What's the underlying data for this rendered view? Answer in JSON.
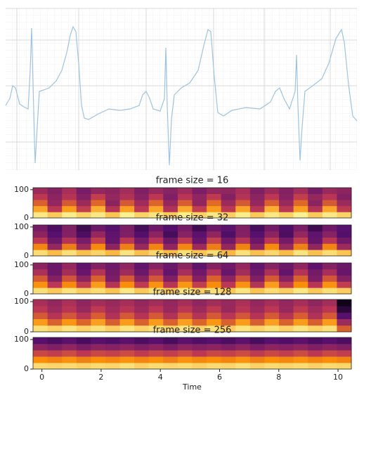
{
  "chart_data": [
    {
      "type": "line",
      "color": "#9ec3e0",
      "x": [
        0,
        6,
        10,
        14,
        20,
        26,
        32,
        35,
        37,
        39,
        42,
        45,
        48,
        54,
        62,
        72,
        80,
        87,
        92,
        96,
        100,
        104,
        108,
        112,
        118,
        132,
        147,
        162,
        177,
        190,
        195,
        200,
        205,
        210,
        220,
        226,
        228,
        230,
        233,
        236,
        240,
        250,
        262,
        274,
        282,
        288,
        292,
        297,
        302,
        310,
        322,
        342,
        362,
        377,
        384,
        390,
        396,
        404,
        412,
        414,
        416,
        419,
        422,
        426,
        437,
        450,
        460,
        470,
        478,
        482,
        488,
        494,
        500
      ],
      "values": [
        92,
        102,
        120,
        117,
        94,
        90,
        87,
        142,
        202,
        122,
        10,
        62,
        112,
        114,
        117,
        127,
        142,
        167,
        192,
        204,
        197,
        152,
        92,
        74,
        72,
        80,
        87,
        85,
        87,
        92,
        107,
        112,
        102,
        87,
        84,
        102,
        174,
        92,
        7,
        72,
        107,
        117,
        124,
        142,
        177,
        200,
        197,
        132,
        82,
        77,
        85,
        89,
        87,
        97,
        112,
        117,
        102,
        87,
        112,
        164,
        92,
        14,
        62,
        112,
        120,
        130,
        152,
        187,
        200,
        182,
        122,
        77,
        70
      ],
      "xlim": [
        0,
        500
      ],
      "ylim": [
        0,
        230
      ]
    },
    {
      "type": "heatmap",
      "title": "frame size = 16",
      "colormap": "inferno",
      "xlim": [
        -0.3,
        10.45
      ],
      "ylim": [
        0,
        107
      ],
      "yticks": [
        0,
        100
      ],
      "values": [
        [
          0.95,
          0.88,
          0.96,
          0.9,
          0.95,
          0.87,
          0.97,
          0.9,
          0.94,
          0.88,
          0.96,
          0.9,
          0.95,
          0.89,
          0.96,
          0.88,
          0.95,
          0.9,
          0.97,
          0.88,
          0.95,
          0.9
        ],
        [
          0.8,
          0.5,
          0.78,
          0.52,
          0.82,
          0.48,
          0.79,
          0.5,
          0.8,
          0.47,
          0.81,
          0.52,
          0.78,
          0.5,
          0.8,
          0.49,
          0.82,
          0.5,
          0.79,
          0.48,
          0.8,
          0.51
        ],
        [
          0.62,
          0.4,
          0.6,
          0.42,
          0.64,
          0.38,
          0.6,
          0.43,
          0.63,
          0.4,
          0.61,
          0.39,
          0.65,
          0.42,
          0.6,
          0.4,
          0.62,
          0.41,
          0.64,
          0.38,
          0.6,
          0.42
        ],
        [
          0.5,
          0.38,
          0.48,
          0.36,
          0.52,
          0.4,
          0.47,
          0.37,
          0.5,
          0.35,
          0.49,
          0.39,
          0.51,
          0.36,
          0.48,
          0.38,
          0.5,
          0.37,
          0.52,
          0.4,
          0.49,
          0.36
        ],
        [
          0.42,
          0.36,
          0.45,
          0.33,
          0.4,
          0.38,
          0.44,
          0.35,
          0.41,
          0.37,
          0.43,
          0.34,
          0.4,
          0.39,
          0.45,
          0.35,
          0.42,
          0.36,
          0.44,
          0.33,
          0.41,
          0.38
        ]
      ]
    },
    {
      "type": "heatmap",
      "title": "frame size = 32",
      "colormap": "inferno",
      "xlim": [
        -0.3,
        10.45
      ],
      "ylim": [
        0,
        107
      ],
      "yticks": [
        0,
        100
      ],
      "values": [
        [
          0.92,
          0.85,
          0.93,
          0.86,
          0.9,
          0.84,
          0.94,
          0.86,
          0.91,
          0.85,
          0.93,
          0.87,
          0.92,
          0.84,
          0.93,
          0.86,
          0.91,
          0.85,
          0.94,
          0.86,
          0.92,
          0.87
        ],
        [
          0.72,
          0.4,
          0.7,
          0.42,
          0.74,
          0.38,
          0.71,
          0.41,
          0.72,
          0.39,
          0.73,
          0.42,
          0.7,
          0.4,
          0.72,
          0.38,
          0.74,
          0.41,
          0.71,
          0.39,
          0.72,
          0.42
        ],
        [
          0.5,
          0.3,
          0.48,
          0.33,
          0.52,
          0.28,
          0.5,
          0.32,
          0.49,
          0.3,
          0.51,
          0.29,
          0.53,
          0.31,
          0.48,
          0.3,
          0.5,
          0.32,
          0.52,
          0.28,
          0.49,
          0.31
        ],
        [
          0.38,
          0.25,
          0.36,
          0.22,
          0.4,
          0.27,
          0.35,
          0.24,
          0.38,
          0.2,
          0.37,
          0.26,
          0.39,
          0.23,
          0.36,
          0.25,
          0.38,
          0.22,
          0.4,
          0.27,
          0.37,
          0.24
        ],
        [
          0.33,
          0.22,
          0.35,
          0.18,
          0.3,
          0.25,
          0.34,
          0.2,
          0.31,
          0.24,
          0.33,
          0.19,
          0.3,
          0.26,
          0.35,
          0.21,
          0.32,
          0.23,
          0.34,
          0.18,
          0.31,
          0.25
        ]
      ]
    },
    {
      "type": "heatmap",
      "title": "frame size = 64",
      "colormap": "inferno",
      "xlim": [
        -0.3,
        10.45
      ],
      "ylim": [
        0,
        107
      ],
      "yticks": [
        0,
        100
      ],
      "values": [
        [
          0.93,
          0.88,
          0.94,
          0.89,
          0.92,
          0.87,
          0.95,
          0.88,
          0.93,
          0.87,
          0.94,
          0.89,
          0.93,
          0.88,
          0.94,
          0.87,
          0.92,
          0.89,
          0.95,
          0.88,
          0.93,
          0.89
        ],
        [
          0.76,
          0.5,
          0.74,
          0.52,
          0.78,
          0.48,
          0.75,
          0.51,
          0.76,
          0.49,
          0.77,
          0.52,
          0.74,
          0.5,
          0.76,
          0.48,
          0.78,
          0.51,
          0.75,
          0.49,
          0.76,
          0.52
        ],
        [
          0.6,
          0.36,
          0.58,
          0.38,
          0.62,
          0.34,
          0.6,
          0.37,
          0.59,
          0.35,
          0.61,
          0.36,
          0.62,
          0.38,
          0.58,
          0.35,
          0.6,
          0.37,
          0.62,
          0.34,
          0.59,
          0.36
        ],
        [
          0.46,
          0.3,
          0.44,
          0.29,
          0.48,
          0.32,
          0.43,
          0.3,
          0.46,
          0.28,
          0.45,
          0.31,
          0.47,
          0.29,
          0.44,
          0.3,
          0.46,
          0.28,
          0.48,
          0.32,
          0.45,
          0.29
        ],
        [
          0.38,
          0.3,
          0.4,
          0.27,
          0.36,
          0.31,
          0.39,
          0.28,
          0.37,
          0.3,
          0.38,
          0.27,
          0.36,
          0.31,
          0.4,
          0.28,
          0.37,
          0.3,
          0.39,
          0.27,
          0.36,
          0.3
        ]
      ]
    },
    {
      "type": "heatmap",
      "title": "frame size = 128",
      "colormap": "inferno",
      "xlim": [
        -0.3,
        10.45
      ],
      "ylim": [
        0,
        107
      ],
      "yticks": [
        0,
        100
      ],
      "values": [
        [
          0.93,
          0.9,
          0.94,
          0.9,
          0.93,
          0.89,
          0.94,
          0.9,
          0.93,
          0.9,
          0.94,
          0.9,
          0.93,
          0.89,
          0.94,
          0.9,
          0.93,
          0.9,
          0.94,
          0.9,
          0.93,
          0.62
        ],
        [
          0.78,
          0.62,
          0.77,
          0.63,
          0.79,
          0.61,
          0.78,
          0.62,
          0.78,
          0.62,
          0.79,
          0.63,
          0.77,
          0.62,
          0.78,
          0.61,
          0.79,
          0.62,
          0.78,
          0.61,
          0.78,
          0.42
        ],
        [
          0.6,
          0.48,
          0.59,
          0.49,
          0.61,
          0.47,
          0.6,
          0.48,
          0.6,
          0.47,
          0.61,
          0.48,
          0.6,
          0.49,
          0.59,
          0.48,
          0.6,
          0.48,
          0.61,
          0.47,
          0.6,
          0.25
        ],
        [
          0.5,
          0.42,
          0.49,
          0.41,
          0.51,
          0.43,
          0.49,
          0.42,
          0.5,
          0.41,
          0.5,
          0.42,
          0.51,
          0.41,
          0.49,
          0.42,
          0.5,
          0.41,
          0.51,
          0.43,
          0.5,
          0.12
        ],
        [
          0.45,
          0.4,
          0.46,
          0.39,
          0.44,
          0.41,
          0.45,
          0.4,
          0.44,
          0.4,
          0.45,
          0.39,
          0.44,
          0.41,
          0.46,
          0.4,
          0.45,
          0.4,
          0.45,
          0.39,
          0.44,
          0.05
        ]
      ]
    },
    {
      "type": "heatmap",
      "title": "frame size = 256",
      "colormap": "inferno",
      "xlim": [
        -0.3,
        10.45
      ],
      "ylim": [
        0,
        107
      ],
      "yticks": [
        0,
        100
      ],
      "xticks": [
        0,
        2,
        4,
        6,
        8,
        10
      ],
      "xlabel": "Time",
      "values": [
        [
          0.92,
          0.91,
          0.92,
          0.9,
          0.92,
          0.91,
          0.93,
          0.9,
          0.92,
          0.91,
          0.92,
          0.9,
          0.92,
          0.91,
          0.93,
          0.9,
          0.92,
          0.91,
          0.92,
          0.9,
          0.92,
          0.91
        ],
        [
          0.75,
          0.72,
          0.76,
          0.71,
          0.75,
          0.73,
          0.76,
          0.72,
          0.75,
          0.71,
          0.76,
          0.73,
          0.75,
          0.72,
          0.76,
          0.71,
          0.75,
          0.73,
          0.76,
          0.72,
          0.75,
          0.72
        ],
        [
          0.55,
          0.52,
          0.56,
          0.5,
          0.55,
          0.53,
          0.56,
          0.51,
          0.55,
          0.52,
          0.56,
          0.5,
          0.55,
          0.53,
          0.56,
          0.51,
          0.55,
          0.52,
          0.56,
          0.5,
          0.55,
          0.52
        ],
        [
          0.38,
          0.35,
          0.39,
          0.34,
          0.38,
          0.36,
          0.39,
          0.35,
          0.38,
          0.34,
          0.39,
          0.36,
          0.38,
          0.35,
          0.39,
          0.34,
          0.38,
          0.36,
          0.39,
          0.35,
          0.38,
          0.35
        ],
        [
          0.25,
          0.22,
          0.26,
          0.21,
          0.25,
          0.23,
          0.26,
          0.22,
          0.25,
          0.21,
          0.26,
          0.23,
          0.25,
          0.22,
          0.26,
          0.21,
          0.25,
          0.23,
          0.26,
          0.22,
          0.25,
          0.22
        ]
      ]
    }
  ]
}
